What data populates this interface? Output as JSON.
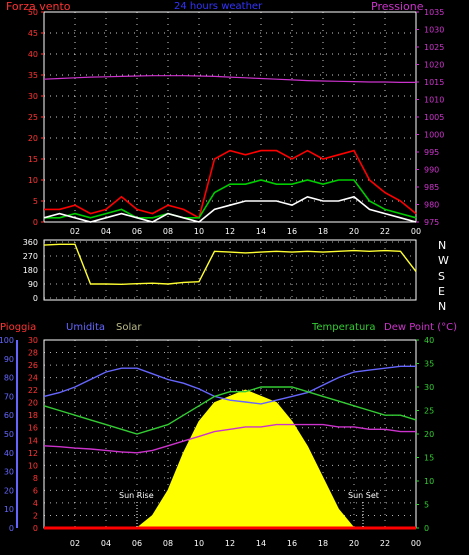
{
  "header": {
    "left_label": "Forza vento",
    "center_title": "24 hours weather",
    "right_label": "Pressione"
  },
  "compass": [
    "N",
    "W",
    "S",
    "E",
    "N"
  ],
  "bottom_labels": {
    "rain": "Pioggia",
    "humidity": "Umidita",
    "solar": "Solar",
    "temperature": "Temperatura",
    "dewpoint": "Dew Point (°C)",
    "sunrise": "Sun Rise",
    "sunset": "Sun Set"
  },
  "colors": {
    "wind_gust": "#ff0000",
    "wind_avg": "#00cc00",
    "wind_speed": "#ffffff",
    "pressure": "#cc33cc",
    "direction": "#ffff33",
    "rain": "#ff0000",
    "humidity": "#6666ff",
    "solar": "#ffff00",
    "temperature": "#33cc33",
    "dewpoint": "#cc33cc",
    "grid": "#ffffff"
  },
  "chart_data": [
    {
      "type": "line",
      "name": "wind-pressure",
      "x_ticks": [
        "02",
        "04",
        "06",
        "08",
        "10",
        "12",
        "14",
        "16",
        "18",
        "20",
        "22",
        "00"
      ],
      "left_axis": {
        "label": "Forza vento",
        "ticks": [
          0,
          5,
          10,
          15,
          20,
          25,
          30,
          35,
          40,
          45,
          50
        ],
        "ylim": [
          0,
          50
        ]
      },
      "right_axis": {
        "label": "Pressione",
        "ticks": [
          975,
          980,
          985,
          990,
          995,
          1000,
          1005,
          1010,
          1015,
          1020,
          1025,
          1030,
          1035
        ],
        "ylim": [
          975,
          1035
        ]
      },
      "x": [
        0,
        1,
        2,
        3,
        4,
        5,
        6,
        7,
        8,
        9,
        10,
        11,
        12,
        13,
        14,
        15,
        16,
        17,
        18,
        19,
        20,
        21,
        22,
        23,
        24
      ],
      "series": [
        {
          "key": "gust",
          "axis": "left",
          "values": [
            3,
            3,
            4,
            2,
            3,
            6,
            3,
            2,
            4,
            3,
            1,
            15,
            17,
            16,
            17,
            17,
            15,
            17,
            15,
            16,
            17,
            10,
            7,
            5,
            2
          ]
        },
        {
          "key": "avg",
          "axis": "left",
          "values": [
            1,
            1,
            2,
            1,
            2,
            3,
            1,
            1,
            2,
            1,
            1,
            7,
            9,
            9,
            10,
            9,
            9,
            10,
            9,
            10,
            10,
            5,
            3,
            2,
            1
          ]
        },
        {
          "key": "speed",
          "axis": "left",
          "values": [
            1,
            2,
            1,
            0,
            1,
            2,
            1,
            0,
            2,
            1,
            0,
            3,
            4,
            5,
            5,
            5,
            4,
            6,
            5,
            5,
            6,
            3,
            2,
            1,
            0
          ]
        },
        {
          "key": "pressure",
          "axis": "right",
          "values": [
            1015.8,
            1016,
            1016.2,
            1016.4,
            1016.5,
            1016.6,
            1016.7,
            1016.8,
            1016.8,
            1016.8,
            1016.7,
            1016.6,
            1016.4,
            1016.2,
            1016,
            1015.8,
            1015.6,
            1015.4,
            1015.3,
            1015.2,
            1015.1,
            1015,
            1015,
            1014.9,
            1014.9
          ]
        }
      ]
    },
    {
      "type": "line",
      "name": "wind-direction",
      "y_ticks": [
        360,
        270,
        180,
        90,
        0
      ],
      "ylim": [
        0,
        360
      ],
      "x": [
        0,
        1,
        2,
        3,
        4,
        5,
        6,
        7,
        8,
        9,
        10,
        11,
        12,
        13,
        14,
        15,
        16,
        17,
        18,
        19,
        20,
        21,
        22,
        23,
        24
      ],
      "values": [
        340,
        345,
        345,
        90,
        90,
        88,
        92,
        95,
        90,
        100,
        105,
        300,
        295,
        290,
        295,
        300,
        295,
        300,
        295,
        300,
        305,
        300,
        305,
        300,
        170
      ]
    },
    {
      "type": "area",
      "name": "rain-humidity-solar-temp",
      "x_ticks": [
        "02",
        "04",
        "06",
        "08",
        "10",
        "12",
        "14",
        "16",
        "18",
        "20",
        "22",
        "00"
      ],
      "axes": {
        "humidity": {
          "ticks": [
            0,
            10,
            20,
            30,
            40,
            50,
            60,
            70,
            80,
            90,
            100
          ],
          "ylim": [
            0,
            100
          ]
        },
        "rain": {
          "ticks": [
            0,
            2,
            4,
            6,
            8,
            10,
            12,
            14,
            16,
            18,
            20,
            22,
            24,
            26,
            28,
            30
          ],
          "ylim": [
            0,
            30
          ]
        },
        "temperature": {
          "ticks": [
            0,
            5,
            10,
            15,
            20,
            25,
            30,
            35,
            40
          ],
          "ylim": [
            0,
            40
          ]
        }
      },
      "x": [
        0,
        1,
        2,
        3,
        4,
        5,
        6,
        7,
        8,
        9,
        10,
        11,
        12,
        13,
        14,
        15,
        16,
        17,
        18,
        19,
        20,
        21,
        22,
        23,
        24
      ],
      "series": [
        {
          "key": "humidity",
          "axis": "humidity",
          "values": [
            70,
            72,
            75,
            79,
            83,
            85,
            85,
            82,
            79,
            77,
            74,
            70,
            68,
            67,
            66,
            68,
            70,
            72,
            76,
            80,
            83,
            84,
            85,
            86,
            86
          ]
        },
        {
          "key": "temperature",
          "axis": "temperature",
          "values": [
            26,
            25,
            24,
            23,
            22,
            21,
            20,
            21,
            22,
            24,
            26,
            28,
            29,
            29,
            30,
            30,
            30,
            29,
            28,
            27,
            26,
            25,
            24,
            24,
            23
          ]
        },
        {
          "key": "dewpoint",
          "axis": "temperature",
          "values": [
            17.5,
            17.3,
            17,
            16.8,
            16.5,
            16.2,
            16,
            16.5,
            17.5,
            18.5,
            19.5,
            20.5,
            21,
            21.5,
            21.5,
            22,
            22,
            22,
            22,
            21.5,
            21.5,
            21,
            21,
            20.5,
            20.5
          ]
        },
        {
          "key": "solar",
          "axis": "rain",
          "values": [
            0,
            0,
            0,
            0,
            0,
            0,
            0,
            2,
            6,
            12,
            17,
            20,
            21,
            22,
            21,
            20,
            17,
            13,
            8,
            3,
            0,
            0,
            0,
            0,
            0
          ]
        },
        {
          "key": "rain",
          "axis": "rain",
          "values": [
            0,
            0,
            0,
            0,
            0,
            0,
            0,
            0,
            0,
            0,
            0,
            0,
            0,
            0,
            0,
            0,
            0,
            0,
            0,
            0,
            0,
            0,
            0,
            0,
            0
          ]
        }
      ]
    }
  ]
}
